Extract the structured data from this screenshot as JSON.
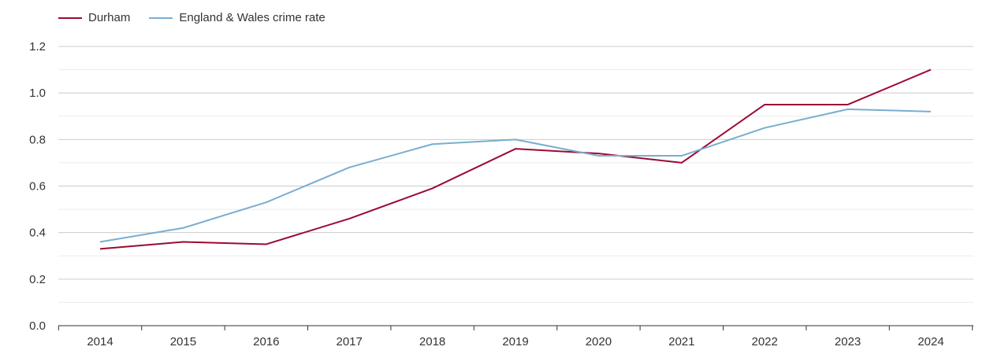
{
  "chart_data": {
    "type": "line",
    "title": "",
    "xlabel": "",
    "ylabel": "",
    "x": [
      "2014",
      "2015",
      "2016",
      "2017",
      "2018",
      "2019",
      "2020",
      "2021",
      "2022",
      "2023",
      "2024"
    ],
    "ylim": [
      0,
      1.2
    ],
    "yticks": [
      "0.0",
      "0.2",
      "0.4",
      "0.6",
      "0.8",
      "1.0",
      "1.2"
    ],
    "grid": true,
    "legend_position": "top-left",
    "series": [
      {
        "name": "Durham",
        "color": "#9b0a32",
        "values": [
          0.33,
          0.36,
          0.35,
          0.46,
          0.59,
          0.76,
          0.74,
          0.7,
          0.95,
          0.95,
          1.1
        ]
      },
      {
        "name": "England & Wales crime rate",
        "color": "#78aed0",
        "values": [
          0.36,
          0.42,
          0.53,
          0.68,
          0.78,
          0.8,
          0.73,
          0.73,
          0.85,
          0.93,
          0.92
        ]
      }
    ]
  }
}
